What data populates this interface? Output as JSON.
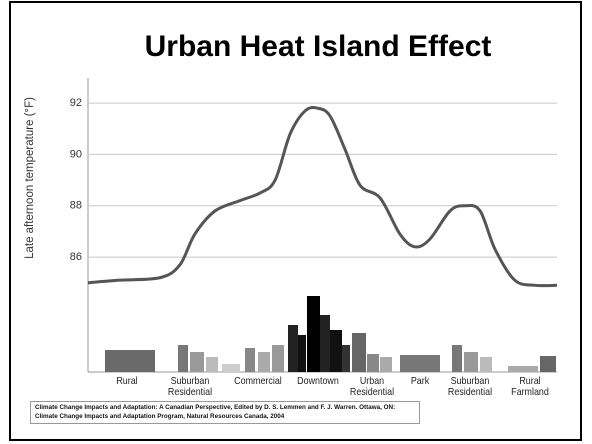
{
  "chart_data": {
    "type": "line",
    "title": "Urban Heat Island Effect",
    "y_label": "Late afternoon temperature (°F)",
    "categories": [
      "Rural",
      "Suburban Residential",
      "Commercial",
      "Downtown",
      "Urban Residential",
      "Park",
      "Suburban Residential",
      "Rural Farmland"
    ],
    "x": [
      0,
      6.8,
      15.4,
      19.6,
      22.8,
      27.1,
      32.4,
      36.7,
      39.9,
      43.1,
      46.3,
      49,
      51.6,
      54.8,
      58,
      62.3,
      66.5,
      69.7,
      72.9,
      77.2,
      80.4,
      83.6,
      86.8,
      91,
      95.3,
      100
    ],
    "xlim": [
      0,
      100
    ],
    "series": [
      {
        "color": "#555555",
        "values": [
          85.0,
          85.1,
          85.2,
          85.7,
          86.9,
          87.8,
          88.2,
          88.5,
          89.0,
          90.8,
          91.7,
          91.8,
          91.5,
          90.2,
          88.8,
          88.3,
          86.9,
          86.4,
          86.7,
          87.8,
          88.0,
          87.8,
          86.3,
          85.1,
          84.9,
          84.9
        ]
      }
    ],
    "ylim": [
      81.6,
      92.9
    ],
    "yticks": [
      86,
      88,
      90,
      92
    ],
    "grid": true,
    "source": "Climate Change Impacts and Adaptation: A Canadian Perspective, Edited by D. S. Lemmen and F. J. Warren. Ottawa, ON: Climate Change Impacts and Adaptation Program, Natural Resources Canada, 2004"
  }
}
